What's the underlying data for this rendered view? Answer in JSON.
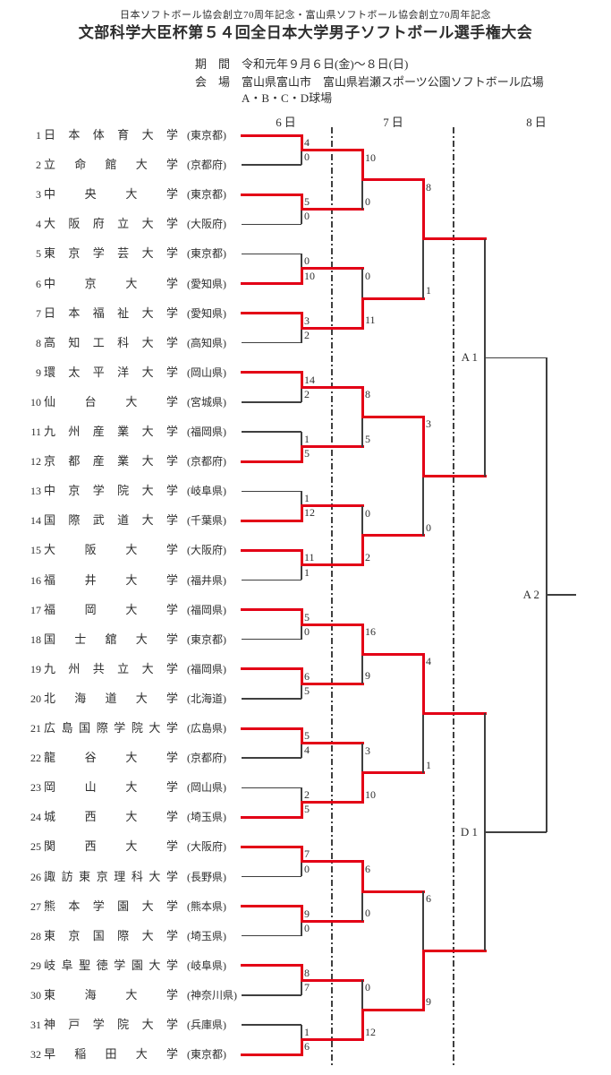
{
  "header": {
    "subtitle": "日本ソフトボール協会創立70周年記念・富山県ソフトボール協会創立70周年記念",
    "title": "文部科学大臣杯第５４回全日本大学男子ソフトボール選手権大会",
    "period_label": "期　間",
    "period_value": "令和元年９月６日(金)～８日(日)",
    "venue_label": "会　場",
    "venue_value": "富山県富山市　富山県岩瀬スポーツ公園ソフトボール広場",
    "venue_fields": "A・B・C・D球場"
  },
  "columns": [
    "6日",
    "7日",
    "8日"
  ],
  "colors": {
    "winner_red": "#e30016",
    "line": "#3f3f3f",
    "text": "#2e2e2e"
  },
  "bracket": {
    "teams": [
      {
        "seed": 1,
        "name": "日本体育大学",
        "prefecture": "(東京都)"
      },
      {
        "seed": 2,
        "name": "立命館大学",
        "prefecture": "(京都府)"
      },
      {
        "seed": 3,
        "name": "中央大学",
        "prefecture": "(東京都)"
      },
      {
        "seed": 4,
        "name": "大阪府立大学",
        "prefecture": "(大阪府)"
      },
      {
        "seed": 5,
        "name": "東京学芸大学",
        "prefecture": "(東京都)"
      },
      {
        "seed": 6,
        "name": "中京大学",
        "prefecture": "(愛知県)"
      },
      {
        "seed": 7,
        "name": "日本福祉大学",
        "prefecture": "(愛知県)"
      },
      {
        "seed": 8,
        "name": "高知工科大学",
        "prefecture": "(高知県)"
      },
      {
        "seed": 9,
        "name": "環太平洋大学",
        "prefecture": "(岡山県)"
      },
      {
        "seed": 10,
        "name": "仙台大学",
        "prefecture": "(宮城県)"
      },
      {
        "seed": 11,
        "name": "九州産業大学",
        "prefecture": "(福岡県)"
      },
      {
        "seed": 12,
        "name": "京都産業大学",
        "prefecture": "(京都府)"
      },
      {
        "seed": 13,
        "name": "中京学院大学",
        "prefecture": "(岐阜県)"
      },
      {
        "seed": 14,
        "name": "国際武道大学",
        "prefecture": "(千葉県)"
      },
      {
        "seed": 15,
        "name": "大阪大学",
        "prefecture": "(大阪府)"
      },
      {
        "seed": 16,
        "name": "福井大学",
        "prefecture": "(福井県)"
      },
      {
        "seed": 17,
        "name": "福岡大学",
        "prefecture": "(福岡県)"
      },
      {
        "seed": 18,
        "name": "国士舘大学",
        "prefecture": "(東京都)"
      },
      {
        "seed": 19,
        "name": "九州共立大学",
        "prefecture": "(福岡県)"
      },
      {
        "seed": 20,
        "name": "北海道大学",
        "prefecture": "(北海道)"
      },
      {
        "seed": 21,
        "name": "広島国際学院大学",
        "prefecture": "(広島県)"
      },
      {
        "seed": 22,
        "name": "龍谷大学",
        "prefecture": "(京都府)"
      },
      {
        "seed": 23,
        "name": "岡山大学",
        "prefecture": "(岡山県)"
      },
      {
        "seed": 24,
        "name": "城西大学",
        "prefecture": "(埼玉県)"
      },
      {
        "seed": 25,
        "name": "関西大学",
        "prefecture": "(大阪府)"
      },
      {
        "seed": 26,
        "name": "諏訪東京理科大学",
        "prefecture": "(長野県)"
      },
      {
        "seed": 27,
        "name": "熊本学園大学",
        "prefecture": "(熊本県)"
      },
      {
        "seed": 28,
        "name": "東京国際大学",
        "prefecture": "(埼玉県)"
      },
      {
        "seed": 29,
        "name": "岐阜聖徳学園大学",
        "prefecture": "(岐阜県)"
      },
      {
        "seed": 30,
        "name": "東海大学",
        "prefecture": "(神奈川県)"
      },
      {
        "seed": 31,
        "name": "神戸学院大学",
        "prefecture": "(兵庫県)"
      },
      {
        "seed": 32,
        "name": "早稲田大学",
        "prefecture": "(東京都)"
      }
    ],
    "round1": [
      {
        "scores": [
          4,
          0
        ],
        "winner": "top"
      },
      {
        "scores": [
          5,
          0
        ],
        "winner": "top"
      },
      {
        "scores": [
          0,
          10
        ],
        "winner": "bottom"
      },
      {
        "scores": [
          3,
          2
        ],
        "winner": "top"
      },
      {
        "scores": [
          14,
          2
        ],
        "winner": "top"
      },
      {
        "scores": [
          1,
          5
        ],
        "winner": "bottom"
      },
      {
        "scores": [
          1,
          12
        ],
        "winner": "bottom"
      },
      {
        "scores": [
          11,
          1
        ],
        "winner": "top"
      },
      {
        "scores": [
          5,
          0
        ],
        "winner": "top"
      },
      {
        "scores": [
          6,
          5
        ],
        "winner": "top"
      },
      {
        "scores": [
          5,
          4
        ],
        "winner": "top"
      },
      {
        "scores": [
          2,
          5
        ],
        "winner": "bottom"
      },
      {
        "scores": [
          7,
          0
        ],
        "winner": "top"
      },
      {
        "scores": [
          9,
          0
        ],
        "winner": "top"
      },
      {
        "scores": [
          8,
          7
        ],
        "winner": "top"
      },
      {
        "scores": [
          1,
          6
        ],
        "winner": "bottom"
      }
    ],
    "round2": [
      {
        "scores": [
          10,
          0
        ],
        "winner": "top"
      },
      {
        "scores": [
          0,
          11
        ],
        "winner": "bottom"
      },
      {
        "scores": [
          8,
          5
        ],
        "winner": "top"
      },
      {
        "scores": [
          0,
          2
        ],
        "winner": "bottom"
      },
      {
        "scores": [
          16,
          9
        ],
        "winner": "top"
      },
      {
        "scores": [
          3,
          10
        ],
        "winner": "bottom"
      },
      {
        "scores": [
          6,
          0
        ],
        "winner": "top"
      },
      {
        "scores": [
          0,
          12
        ],
        "winner": "bottom"
      }
    ],
    "quarterfinals": [
      {
        "scores": [
          8,
          1
        ],
        "winner": "top"
      },
      {
        "scores": [
          3,
          0
        ],
        "winner": "top"
      },
      {
        "scores": [
          4,
          1
        ],
        "winner": "top"
      },
      {
        "scores": [
          6,
          9
        ],
        "winner": "bottom"
      }
    ],
    "semifinals": [
      {
        "label": "A 1",
        "scores": null,
        "winner": null
      },
      {
        "label": "D 1",
        "scores": null,
        "winner": null
      }
    ],
    "final": {
      "label": "A 2",
      "scores": null,
      "winner": null
    }
  }
}
